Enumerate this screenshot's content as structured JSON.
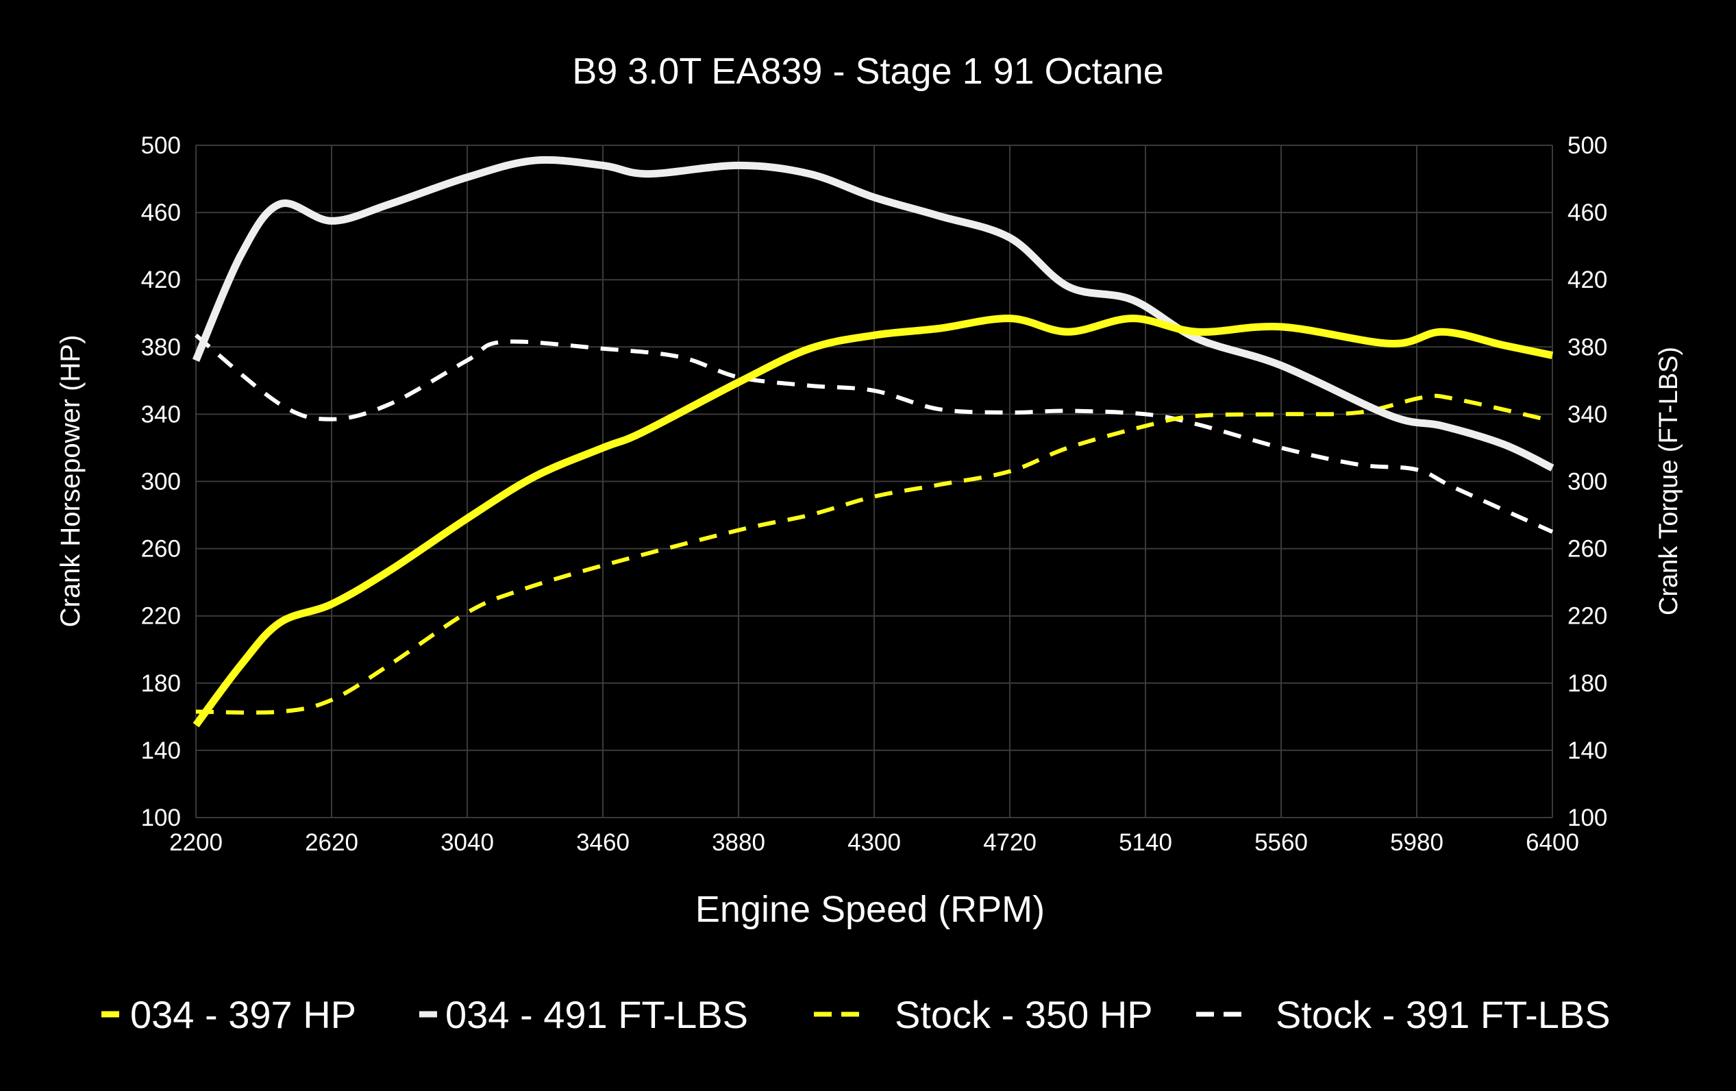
{
  "chart_data": {
    "type": "line",
    "title": "B9 3.0T EA839 - Stage 1 91 Octane",
    "xlabel": "Engine Speed (RPM)",
    "ylabel": "Crank Horsepower (HP)",
    "y2label": "Crank Torque (FT-LBS)",
    "xlim": [
      2200,
      6400
    ],
    "ylim": [
      100,
      500
    ],
    "y2lim": [
      100,
      500
    ],
    "xticks": [
      "2200",
      "2620",
      "3040",
      "3460",
      "3880",
      "4300",
      "4720",
      "5140",
      "5560",
      "5980",
      "6400"
    ],
    "yticks": [
      "100",
      "140",
      "180",
      "220",
      "260",
      "300",
      "340",
      "380",
      "420",
      "460",
      "500"
    ],
    "grid": true,
    "legend_position": "bottom",
    "background": "#000000",
    "series": [
      {
        "name": "034 - 397 HP",
        "color": "#ffff1a",
        "style": "solid",
        "axis": "left",
        "x": [
          2200,
          2340,
          2460,
          2620,
          2800,
          3040,
          3250,
          3460,
          3580,
          3880,
          4100,
          4300,
          4500,
          4720,
          4900,
          5100,
          5300,
          5560,
          5900,
          6060,
          6250,
          6400
        ],
        "y": [
          155,
          191,
          216,
          227,
          247,
          278,
          303,
          320,
          329,
          359,
          379,
          387,
          391,
          397,
          389,
          397,
          389,
          392,
          382,
          389,
          381,
          375
        ]
      },
      {
        "name": "034 - 491 FT-LBS",
        "color": "#eeeeee",
        "style": "solid",
        "axis": "right",
        "x": [
          2200,
          2340,
          2460,
          2620,
          2800,
          3040,
          3250,
          3460,
          3600,
          3880,
          4100,
          4300,
          4500,
          4720,
          4900,
          5100,
          5300,
          5560,
          5900,
          6060,
          6250,
          6400
        ],
        "y": [
          372,
          435,
          465,
          455,
          465,
          481,
          491,
          488,
          483,
          488,
          483,
          469,
          458,
          445,
          416,
          408,
          385,
          369,
          339,
          333,
          322,
          308
        ]
      },
      {
        "name": "Stock - 350 HP",
        "color": "#ffff1a",
        "style": "dashed",
        "axis": "left",
        "x": [
          2200,
          2460,
          2620,
          2800,
          3040,
          3200,
          3460,
          3880,
          4100,
          4300,
          4500,
          4720,
          4900,
          5140,
          5300,
          5560,
          5800,
          6000,
          6100,
          6400
        ],
        "y": [
          163,
          163,
          170,
          191,
          222,
          235,
          250,
          271,
          280,
          291,
          298,
          306,
          320,
          333,
          339,
          340,
          341,
          350,
          349,
          336
        ]
      },
      {
        "name": "Stock - 391 FT-LBS",
        "color": "#ffffff",
        "style": "dashed",
        "axis": "right",
        "x": [
          2200,
          2460,
          2620,
          2800,
          3040,
          3150,
          3460,
          3700,
          3880,
          4100,
          4300,
          4500,
          4720,
          4900,
          5140,
          5300,
          5560,
          5800,
          5980,
          6100,
          6400
        ],
        "y": [
          387,
          346,
          337,
          346,
          372,
          383,
          379,
          374,
          362,
          357,
          354,
          343,
          341,
          342,
          340,
          334,
          320,
          310,
          307,
          296,
          270
        ]
      }
    ]
  }
}
